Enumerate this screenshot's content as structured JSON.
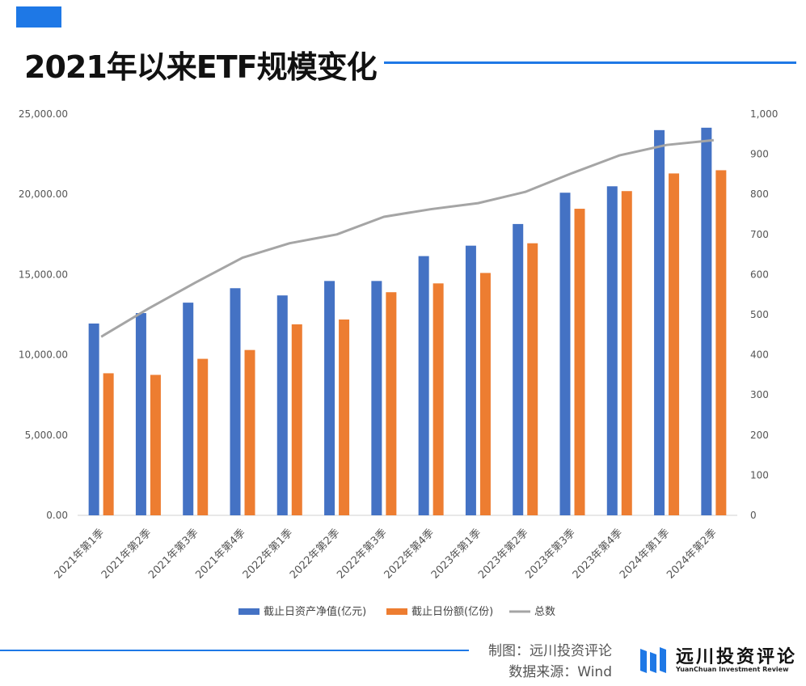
{
  "header": {
    "title": "2021年以来ETF规模变化"
  },
  "footer": {
    "maker": "制图：远川投资评论",
    "source": "数据来源：Wind",
    "brand_cn": "远川投资评论",
    "brand_en": "YuanChuan Investment Review"
  },
  "colors": {
    "accent": "#1e78e6",
    "bar_nav": "#4472c4",
    "bar_shares": "#ed7d31",
    "line_total": "#a5a5a5"
  },
  "chart_data": {
    "type": "bar",
    "title": "",
    "xlabel": "",
    "ylabel": "",
    "categories": [
      "2021年第1季",
      "2021年第2季",
      "2021年第3季",
      "2021年第4季",
      "2022年第1季",
      "2022年第2季",
      "2022年第3季",
      "2022年第4季",
      "2023年第1季",
      "2023年第2季",
      "2023年第3季",
      "2023年第4季",
      "2024年第1季",
      "2024年第2季"
    ],
    "ylim": [
      0,
      25000
    ],
    "y_ticks": [
      "0.00",
      "5,000.00",
      "10,000.00",
      "15,000.00",
      "20,000.00",
      "25,000.00"
    ],
    "y2lim": [
      0,
      1000
    ],
    "y2_ticks": [
      "0",
      "100",
      "200",
      "300",
      "400",
      "500",
      "600",
      "700",
      "800",
      "900",
      "1,000"
    ],
    "grid": false,
    "legend_position": "bottom",
    "series": [
      {
        "name": "截止日资产净值(亿元)",
        "type": "bar",
        "axis": "left",
        "values": [
          11950,
          12600,
          13250,
          14150,
          13700,
          14600,
          14600,
          16150,
          16800,
          18150,
          20100,
          20500,
          24000,
          24150
        ]
      },
      {
        "name": "截止日份额(亿份)",
        "type": "bar",
        "axis": "left",
        "values": [
          8850,
          8750,
          9750,
          10300,
          11900,
          12200,
          13900,
          14450,
          15100,
          16950,
          19100,
          20200,
          21300,
          21500
        ]
      },
      {
        "name": "总数",
        "type": "line",
        "axis": "right",
        "values": [
          445,
          515,
          580,
          642,
          678,
          700,
          744,
          763,
          778,
          806,
          853,
          897,
          923,
          935
        ]
      }
    ]
  }
}
